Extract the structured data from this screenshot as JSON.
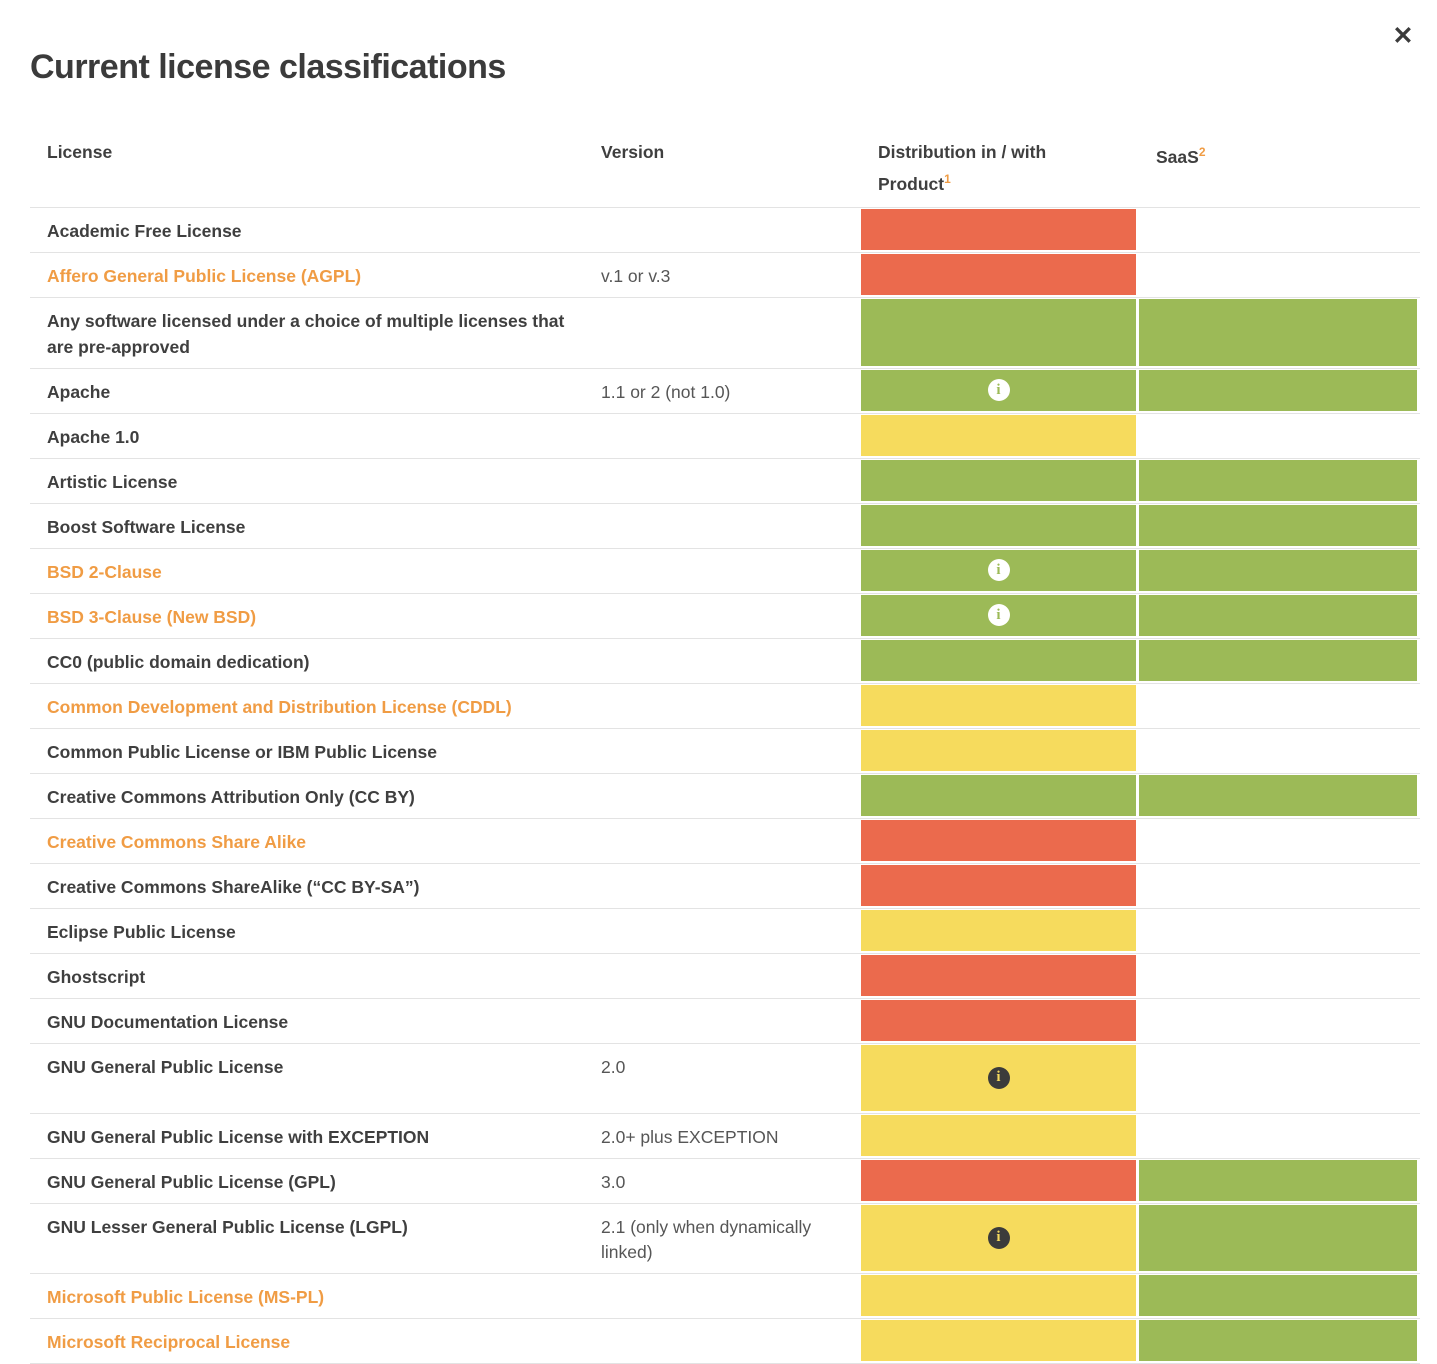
{
  "modal": {
    "title": "Current license classifications",
    "close_label": "✕"
  },
  "table": {
    "columns": {
      "license": "License",
      "version": "Version",
      "distribution_line1": "Distribution in / with",
      "distribution_line2": "Product",
      "distribution_footnote": "1",
      "saas": "SaaS",
      "saas_footnote": "2"
    },
    "legend_colors": {
      "red": "#eb6a4d",
      "green": "#9cba57",
      "yellow": "#f6db5d",
      "link_orange": "#f09c44",
      "text_dark": "#3f3f3f",
      "version_gray": "#565656",
      "divider": "#e3e3e3"
    },
    "rows": [
      {
        "license": "Academic Free License",
        "link": false,
        "version": "",
        "dist": "red",
        "info": "none",
        "saas": "none",
        "tall": ""
      },
      {
        "license": "Affero General Public License (AGPL)",
        "link": true,
        "version": "v.1 or v.3",
        "dist": "red",
        "info": "none",
        "saas": "none",
        "tall": ""
      },
      {
        "license": "Any software licensed under a choice of multiple licenses that are pre-approved",
        "link": false,
        "version": "",
        "dist": "green",
        "info": "none",
        "saas": "green",
        "tall": ""
      },
      {
        "license": "Apache",
        "link": false,
        "version": "1.1 or 2 (not 1.0)",
        "dist": "green",
        "info": "white",
        "saas": "green",
        "tall": ""
      },
      {
        "license": "Apache 1.0",
        "link": false,
        "version": "",
        "dist": "yellow",
        "info": "none",
        "saas": "none",
        "tall": ""
      },
      {
        "license": "Artistic License",
        "link": false,
        "version": "",
        "dist": "green",
        "info": "none",
        "saas": "green",
        "tall": ""
      },
      {
        "license": "Boost Software License",
        "link": false,
        "version": "",
        "dist": "green",
        "info": "none",
        "saas": "green",
        "tall": ""
      },
      {
        "license": "BSD 2-Clause",
        "link": true,
        "version": "",
        "dist": "green",
        "info": "white",
        "saas": "green",
        "tall": ""
      },
      {
        "license": "BSD 3-Clause (New BSD)",
        "link": true,
        "version": "",
        "dist": "green",
        "info": "white",
        "saas": "green",
        "tall": ""
      },
      {
        "license": "CC0 (public domain dedication)",
        "link": false,
        "version": "",
        "dist": "green",
        "info": "none",
        "saas": "green",
        "tall": ""
      },
      {
        "license": "Common Development and Distribution License (CDDL)",
        "link": true,
        "version": "",
        "dist": "yellow",
        "info": "none",
        "saas": "none",
        "tall": ""
      },
      {
        "license": "Common Public License or IBM Public License",
        "link": false,
        "version": "",
        "dist": "yellow",
        "info": "none",
        "saas": "none",
        "tall": ""
      },
      {
        "license": "Creative Commons Attribution Only (CC BY)",
        "link": false,
        "version": "",
        "dist": "green",
        "info": "none",
        "saas": "green",
        "tall": ""
      },
      {
        "license": "Creative Commons Share Alike",
        "link": true,
        "version": "",
        "dist": "red",
        "info": "none",
        "saas": "none",
        "tall": ""
      },
      {
        "license": "Creative Commons ShareAlike (“CC BY-SA”)",
        "link": false,
        "version": "",
        "dist": "red",
        "info": "none",
        "saas": "none",
        "tall": ""
      },
      {
        "license": "Eclipse Public License",
        "link": false,
        "version": "",
        "dist": "yellow",
        "info": "none",
        "saas": "none",
        "tall": ""
      },
      {
        "license": "Ghostscript",
        "link": false,
        "version": "",
        "dist": "red",
        "info": "none",
        "saas": "none",
        "tall": ""
      },
      {
        "license": "GNU Documentation License",
        "link": false,
        "version": "",
        "dist": "red",
        "info": "none",
        "saas": "none",
        "tall": ""
      },
      {
        "license": "GNU General Public License",
        "link": false,
        "version": "2.0",
        "dist": "yellow",
        "info": "dark",
        "saas": "none",
        "tall": "tall-19"
      },
      {
        "license": "GNU General Public License with EXCEPTION",
        "link": false,
        "version": "2.0+ plus EXCEPTION",
        "dist": "yellow",
        "info": "none",
        "saas": "none",
        "tall": ""
      },
      {
        "license": "GNU General Public License (GPL)",
        "link": false,
        "version": "3.0",
        "dist": "red",
        "info": "none",
        "saas": "green",
        "tall": ""
      },
      {
        "license": "GNU Lesser General Public License (LGPL)",
        "link": false,
        "version": "2.1 (only when dynamically linked)",
        "dist": "yellow",
        "info": "dark",
        "saas": "green",
        "tall": "tall-22"
      },
      {
        "license": "Microsoft Public License (MS-PL)",
        "link": true,
        "version": "",
        "dist": "yellow",
        "info": "none",
        "saas": "green",
        "tall": ""
      },
      {
        "license": "Microsoft Reciprocal License",
        "link": true,
        "version": "",
        "dist": "yellow",
        "info": "none",
        "saas": "green",
        "tall": ""
      }
    ]
  }
}
